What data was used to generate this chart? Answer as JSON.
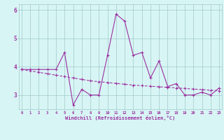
{
  "xlabel": "Windchill (Refroidissement éolien,°C)",
  "x": [
    0,
    1,
    2,
    3,
    4,
    5,
    6,
    7,
    8,
    9,
    10,
    11,
    12,
    13,
    14,
    15,
    16,
    17,
    18,
    19,
    20,
    21,
    22,
    23
  ],
  "y_main": [
    3.9,
    3.9,
    3.9,
    3.9,
    3.9,
    4.5,
    2.65,
    3.2,
    3.0,
    3.0,
    4.4,
    5.85,
    5.6,
    4.4,
    4.5,
    3.6,
    4.2,
    3.3,
    3.4,
    3.0,
    3.0,
    3.1,
    3.0,
    3.25
  ],
  "y_trend": [
    3.9,
    3.85,
    3.8,
    3.75,
    3.7,
    3.65,
    3.6,
    3.55,
    3.5,
    3.47,
    3.44,
    3.41,
    3.38,
    3.35,
    3.33,
    3.31,
    3.29,
    3.27,
    3.25,
    3.23,
    3.21,
    3.19,
    3.17,
    3.15
  ],
  "line_color": "#9b30a0",
  "bg_color": "#d8f5f5",
  "grid_color": "#a0c8c8",
  "ylim": [
    2.5,
    6.2
  ],
  "yticks": [
    3,
    4,
    5,
    6
  ],
  "xticks": [
    0,
    1,
    2,
    3,
    4,
    5,
    6,
    7,
    8,
    9,
    10,
    11,
    12,
    13,
    14,
    15,
    16,
    17,
    18,
    19,
    20,
    21,
    22,
    23
  ]
}
